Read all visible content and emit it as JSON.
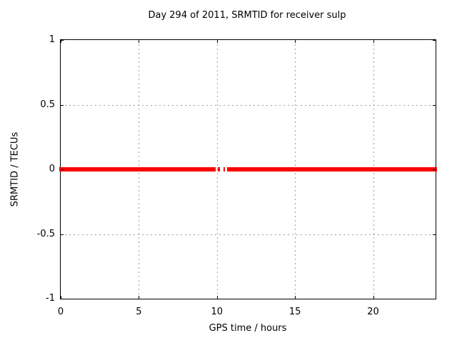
{
  "figure": {
    "background_color": "#ffffff"
  },
  "chart_data": {
    "type": "line",
    "title": "Day 294 of 2011, SRMTID for receiver sulp",
    "xlabel": "GPS time / hours",
    "ylabel": "SRMTID / TECUs",
    "xlim": [
      0,
      24
    ],
    "ylim": [
      -1,
      1
    ],
    "xticks": [
      0,
      5,
      10,
      15,
      20
    ],
    "yticks": [
      -1,
      -0.5,
      0,
      0.5,
      1
    ],
    "grid": true,
    "legend": "none",
    "series": [
      {
        "name": "SRMTID",
        "color": "#ff0000",
        "y_value": 0,
        "description": "constant zero TECUs across the day with a data gap near 10.0-10.65 hours containing two short isolated samples",
        "segments_hours": [
          [
            0,
            9.93
          ],
          [
            10.05,
            10.2
          ],
          [
            10.42,
            10.52
          ],
          [
            10.65,
            24
          ]
        ]
      }
    ],
    "colors": {
      "line": "#ff0000",
      "grid": "#9e9e9e",
      "border": "#000000",
      "text": "#000000"
    }
  }
}
